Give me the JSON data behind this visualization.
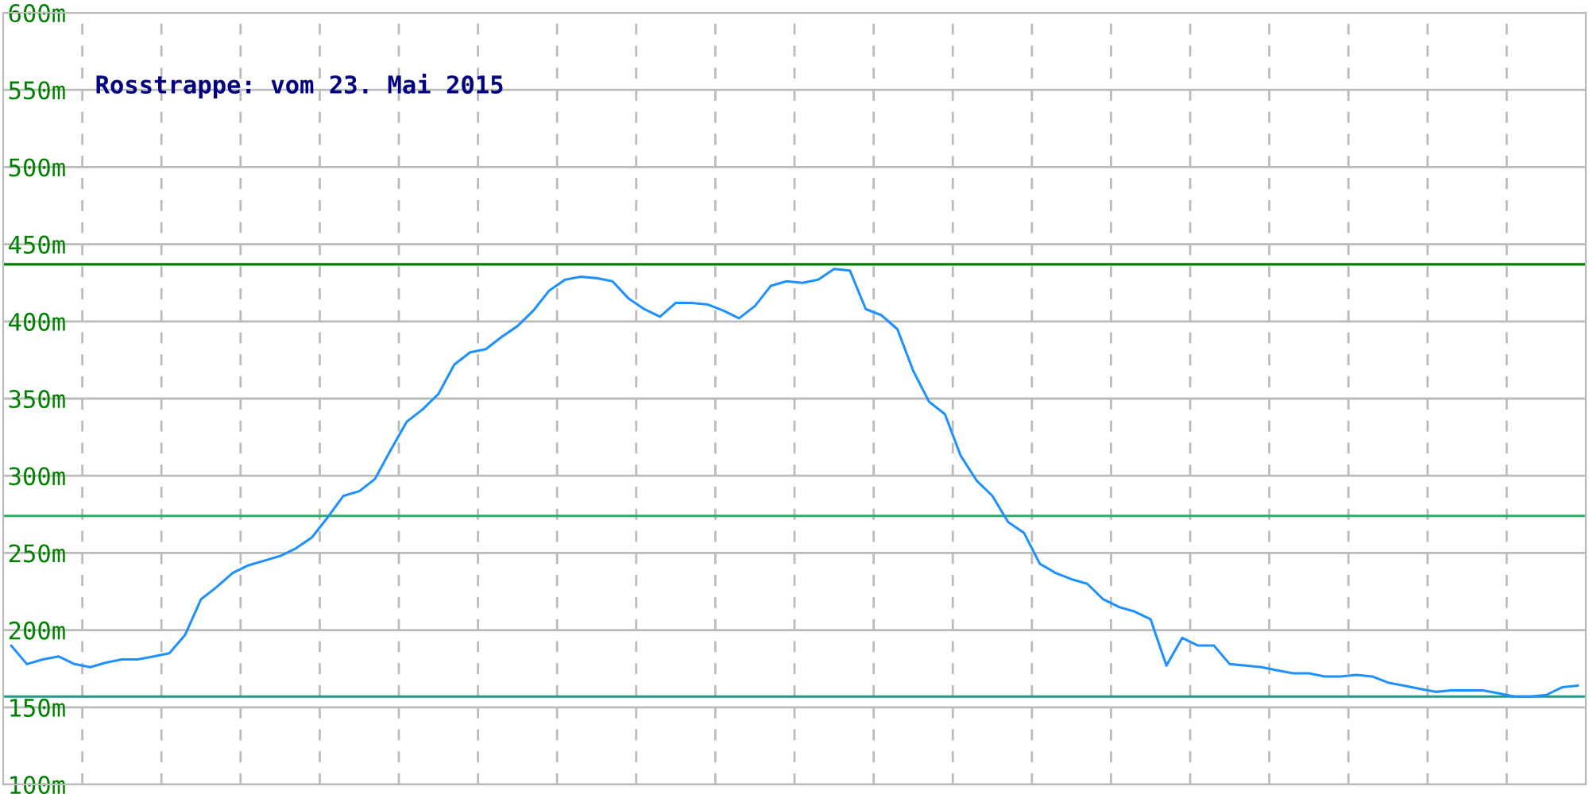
{
  "chart_data": {
    "type": "line",
    "title": "Rosstrappe: vom 23. Mai 2015",
    "categories": [
      null,
      null,
      null,
      null,
      null,
      null,
      null,
      null,
      null,
      null,
      null,
      null,
      null,
      null,
      null,
      null,
      null,
      null,
      null,
      null,
      null,
      null,
      null,
      null,
      null,
      null,
      null,
      null,
      null,
      null,
      null,
      null,
      null,
      null,
      null,
      null,
      null,
      null,
      null,
      null,
      null,
      null,
      null,
      null,
      null,
      null,
      null,
      null,
      null,
      null,
      null,
      null,
      null,
      null,
      null,
      null,
      null,
      null,
      null,
      null,
      null,
      null,
      null,
      null,
      null,
      null,
      null,
      null,
      null,
      null,
      null,
      null,
      null,
      null,
      null,
      null,
      null,
      null,
      null,
      null,
      null,
      null,
      null,
      null,
      null,
      null,
      null,
      null,
      null,
      null,
      null,
      null,
      null,
      null,
      null,
      null,
      null,
      null,
      null,
      null
    ],
    "series": [
      {
        "color": "#1e90ff",
        "values": [
          190,
          178,
          181,
          183,
          178,
          176,
          179,
          181,
          181,
          183,
          185,
          197,
          220,
          228,
          237,
          242,
          245,
          248,
          253,
          260,
          273,
          287,
          290,
          298,
          317,
          335,
          343,
          353,
          372,
          380,
          382,
          390,
          397,
          407,
          420,
          427,
          429,
          428,
          426,
          415,
          408,
          403,
          412,
          412,
          411,
          407,
          402,
          410,
          423,
          426,
          425,
          427,
          434,
          433,
          408,
          404,
          395,
          368,
          348,
          340,
          313,
          297,
          287,
          270,
          263,
          243,
          237,
          233,
          230,
          220,
          215,
          212,
          207,
          177,
          195,
          190,
          190,
          178,
          177,
          176,
          174,
          172,
          172,
          170,
          170,
          171,
          170,
          166,
          164,
          162,
          160,
          161,
          161,
          161,
          159,
          157,
          157,
          158,
          163,
          164
        ]
      }
    ],
    "ylim": [
      100,
      600
    ],
    "yticks": [
      {
        "value": 100,
        "label": "100m"
      },
      {
        "value": 150,
        "label": "150m"
      },
      {
        "value": 200,
        "label": "200m"
      },
      {
        "value": 250,
        "label": "250m"
      },
      {
        "value": 300,
        "label": "300m"
      },
      {
        "value": 350,
        "label": "350m"
      },
      {
        "value": 400,
        "label": "400m"
      },
      {
        "value": 450,
        "label": "450m"
      },
      {
        "value": 500,
        "label": "500m"
      },
      {
        "value": 550,
        "label": "550m"
      },
      {
        "value": 600,
        "label": "600m"
      }
    ],
    "ref_lines": [
      {
        "axis": "y",
        "value": 437,
        "color": "#008000"
      },
      {
        "axis": "y",
        "value": 274,
        "color": "#33aa66"
      },
      {
        "axis": "y",
        "value": 157,
        "color": "#229988"
      }
    ],
    "grid": true,
    "tick_labels": "y"
  }
}
